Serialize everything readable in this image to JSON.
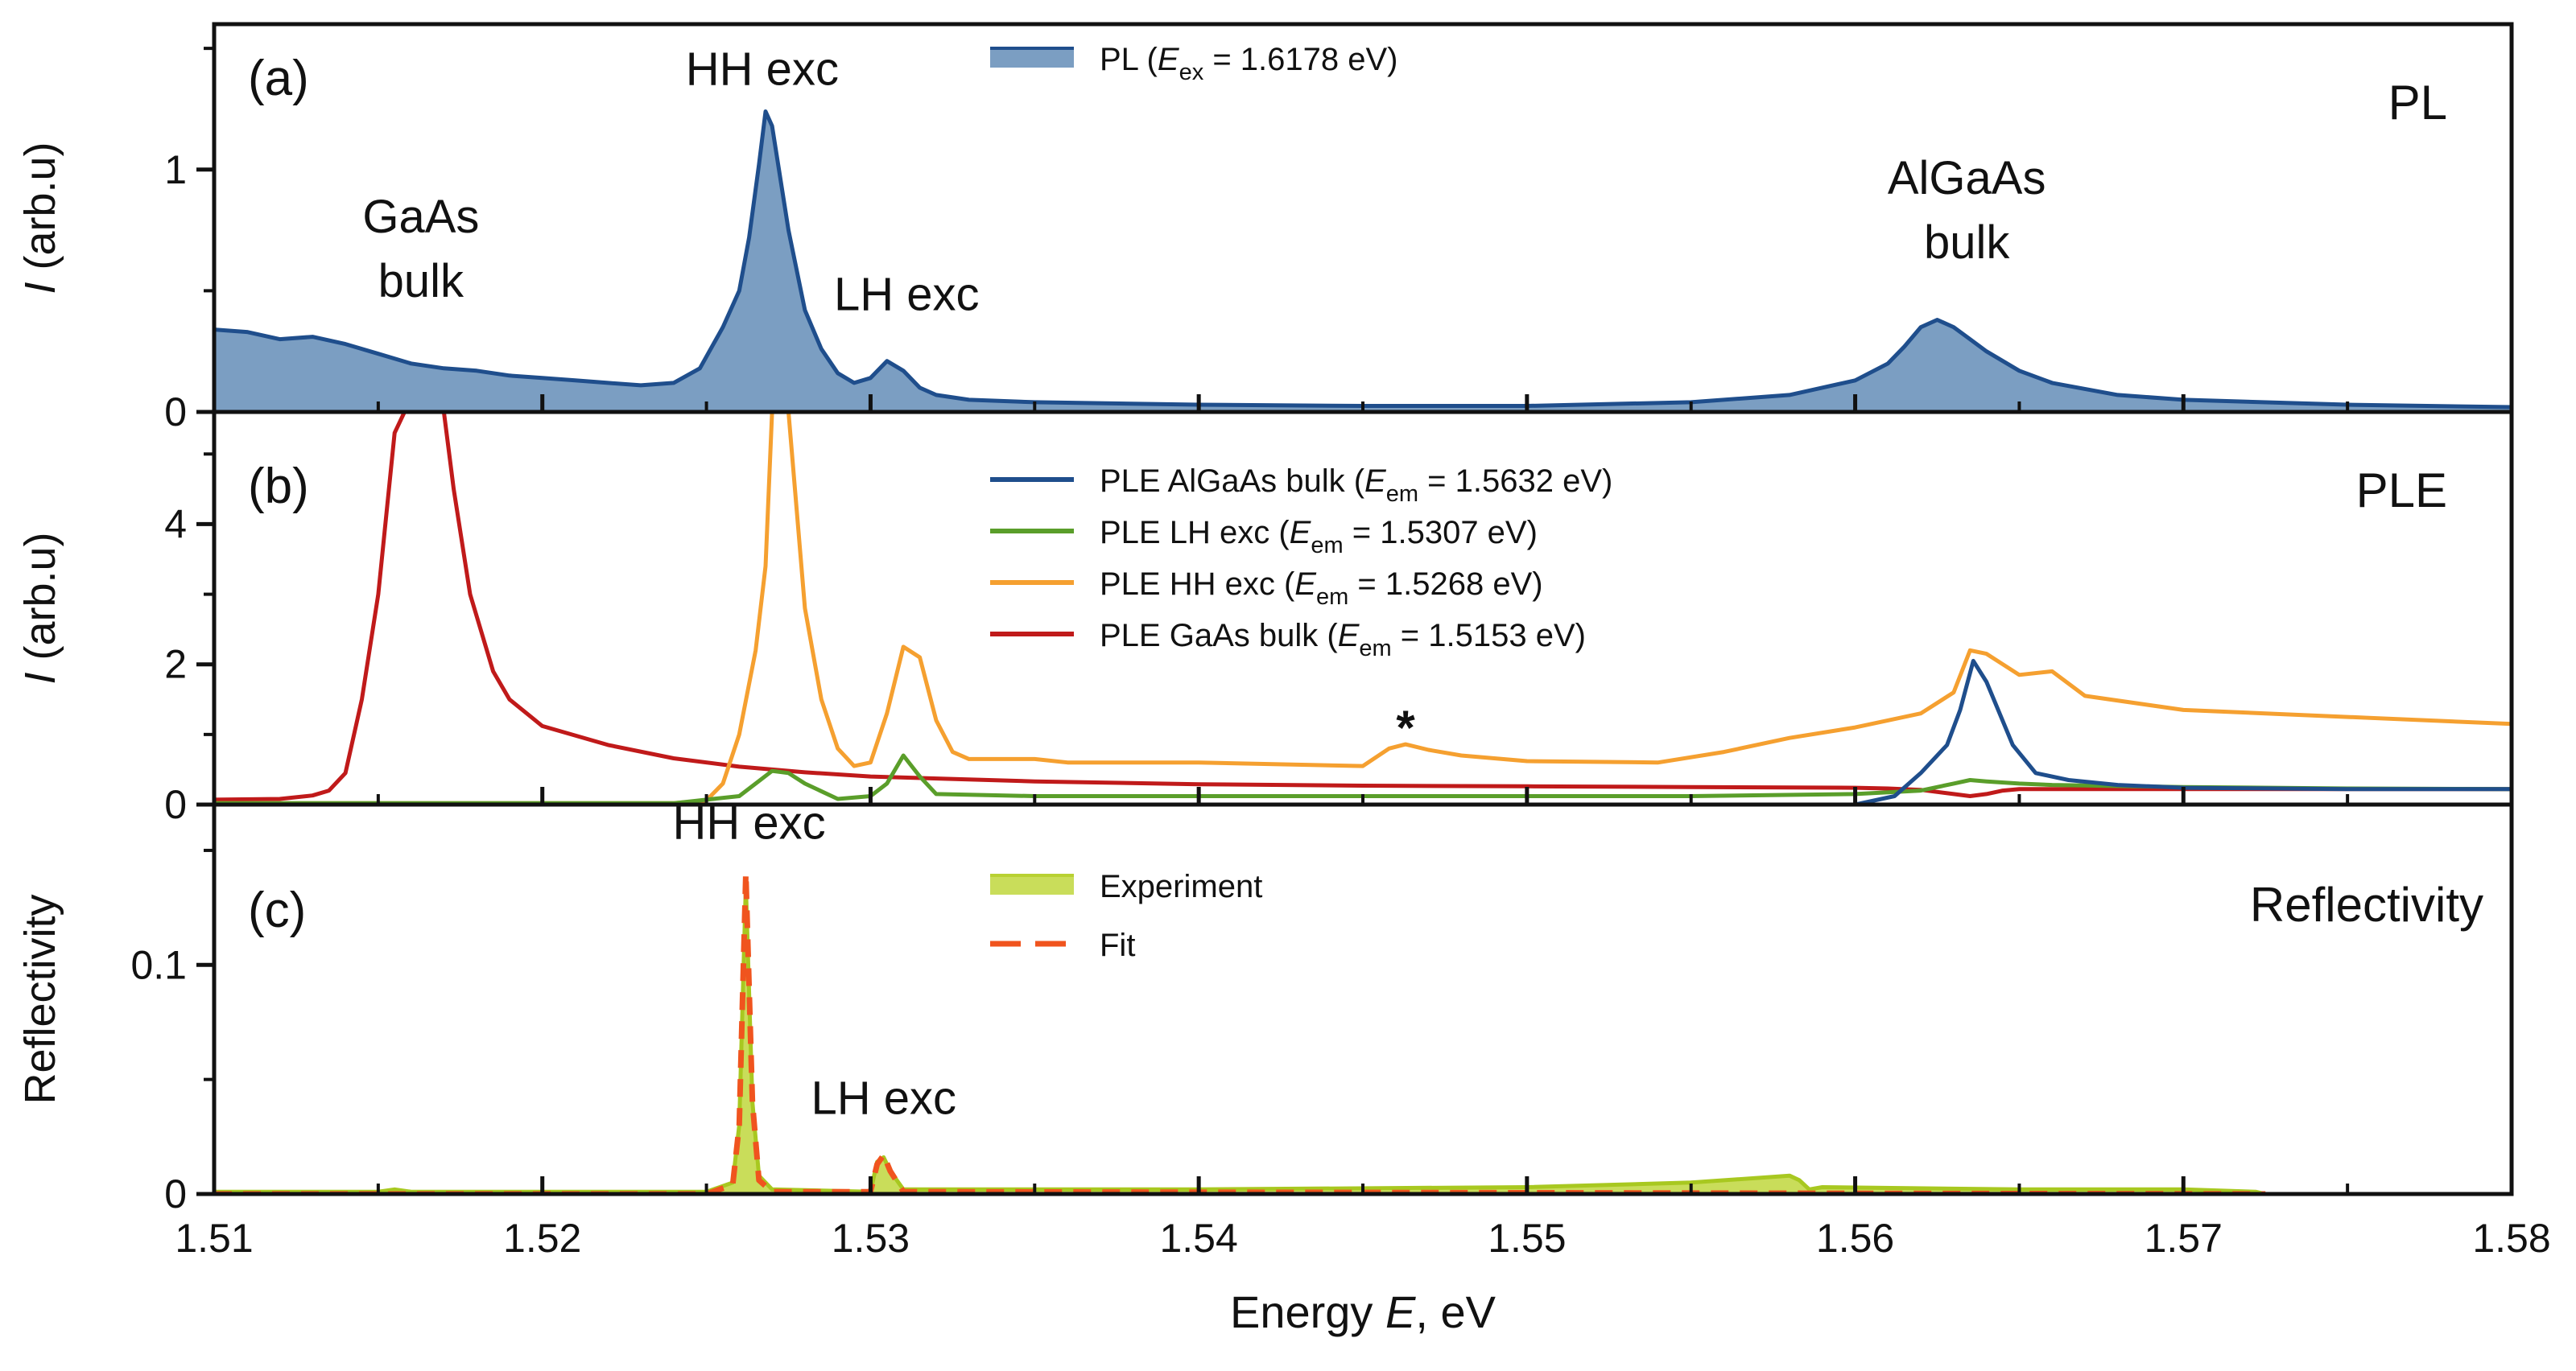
{
  "chart_data": {
    "type": "line",
    "x_axis": {
      "label_prefix": "Energy ",
      "label_var": "E",
      "label_suffix": ", eV",
      "xlim": [
        1.51,
        1.58
      ],
      "ticks": [
        "1.51",
        "1.52",
        "1.53",
        "1.54",
        "1.55",
        "1.56",
        "1.57",
        "1.58"
      ]
    },
    "panels": [
      {
        "id": "a",
        "tag": "(a)",
        "title": "PL",
        "ylabel_var": "I",
        "ylabel_rest": " (arb.u)",
        "ylim": [
          0,
          1.6
        ],
        "yticks": [
          {
            "v": 0,
            "label": "0"
          },
          {
            "v": 1,
            "label": "1"
          }
        ],
        "minor_yticks": [
          0.5,
          1.5
        ],
        "annotations": [
          {
            "lines": [
              "GaAs",
              "bulk"
            ],
            "x": 1.5163,
            "y": 0.74
          },
          {
            "lines": [
              "HH exc"
            ],
            "x": 1.5267,
            "y": 1.35
          },
          {
            "lines": [
              "LH exc"
            ],
            "x": 1.5311,
            "y": 0.42
          },
          {
            "lines": [
              "AlGaAs",
              "bulk"
            ],
            "x": 1.5634,
            "y": 0.9
          }
        ],
        "legend": [
          {
            "text": "PL (",
            "var": "E",
            "sub": "ex",
            "rest": " = 1.6178 eV)",
            "style": "fill",
            "color": "#1f4e8c"
          }
        ],
        "series": [
          {
            "name": "PL",
            "style": "filled",
            "color": "#1f4e8c",
            "fill": "#7b9ec2",
            "x": [
              1.51,
              1.511,
              1.512,
              1.513,
              1.514,
              1.515,
              1.516,
              1.517,
              1.518,
              1.519,
              1.52,
              1.521,
              1.522,
              1.523,
              1.524,
              1.5248,
              1.5255,
              1.526,
              1.5263,
              1.5266,
              1.5268,
              1.527,
              1.5275,
              1.528,
              1.5285,
              1.529,
              1.5295,
              1.53,
              1.5305,
              1.531,
              1.5315,
              1.532,
              1.533,
              1.535,
              1.54,
              1.545,
              1.55,
              1.555,
              1.558,
              1.56,
              1.561,
              1.5615,
              1.562,
              1.5625,
              1.563,
              1.5635,
              1.564,
              1.565,
              1.566,
              1.568,
              1.57,
              1.575,
              1.58
            ],
            "y": [
              0.34,
              0.33,
              0.3,
              0.31,
              0.28,
              0.24,
              0.2,
              0.18,
              0.17,
              0.15,
              0.14,
              0.13,
              0.12,
              0.11,
              0.12,
              0.18,
              0.35,
              0.5,
              0.72,
              1.02,
              1.24,
              1.18,
              0.75,
              0.42,
              0.26,
              0.16,
              0.12,
              0.14,
              0.21,
              0.17,
              0.1,
              0.07,
              0.05,
              0.04,
              0.03,
              0.025,
              0.025,
              0.04,
              0.07,
              0.13,
              0.2,
              0.27,
              0.35,
              0.38,
              0.35,
              0.3,
              0.25,
              0.17,
              0.12,
              0.07,
              0.05,
              0.03,
              0.02
            ]
          }
        ]
      },
      {
        "id": "b",
        "tag": "(b)",
        "title": "PLE",
        "ylabel_var": "I",
        "ylabel_rest": " (arb.u)",
        "ylim": [
          0,
          5.6
        ],
        "yticks": [
          {
            "v": 0,
            "label": "0"
          },
          {
            "v": 2,
            "label": "2"
          },
          {
            "v": 4,
            "label": "4"
          }
        ],
        "minor_yticks": [
          1,
          3,
          5
        ],
        "annotations": [
          {
            "lines": [
              "*"
            ],
            "x": 1.5463,
            "y": 0.86
          }
        ],
        "legend": [
          {
            "text": "PLE AlGaAs bulk (",
            "var": "E",
            "sub": "em",
            "rest": " = 1.5632 eV)",
            "style": "line",
            "color": "#1f4e8c"
          },
          {
            "text": "PLE LH exc (",
            "var": "E",
            "sub": "em",
            "rest": " = 1.5307 eV)",
            "style": "line",
            "color": "#5a9e2a"
          },
          {
            "text": "PLE HH exc (",
            "var": "E",
            "sub": "em",
            "rest": " = 1.5268 eV)",
            "style": "line",
            "color": "#f5a030"
          },
          {
            "text": "PLE GaAs bulk (",
            "var": "E",
            "sub": "em",
            "rest": " = 1.5153 eV)",
            "style": "line",
            "color": "#c01a1a"
          }
        ],
        "series": [
          {
            "name": "PLE GaAs bulk",
            "style": "line",
            "color": "#c01a1a",
            "x": [
              1.51,
              1.512,
              1.513,
              1.5135,
              1.514,
              1.5145,
              1.515,
              1.5155,
              1.5158,
              1.516,
              1.5165,
              1.517,
              1.5173,
              1.5178,
              1.5185,
              1.519,
              1.52,
              1.522,
              1.524,
              1.526,
              1.528,
              1.53,
              1.535,
              1.54,
              1.545,
              1.55,
              1.555,
              1.56,
              1.561,
              1.562,
              1.563,
              1.5635,
              1.564,
              1.5645,
              1.565,
              1.57,
              1.575,
              1.58
            ],
            "y": [
              0.07,
              0.08,
              0.13,
              0.2,
              0.45,
              1.5,
              3.0,
              5.3,
              5.6,
              5.6,
              5.6,
              5.6,
              4.5,
              3.0,
              1.9,
              1.5,
              1.12,
              0.85,
              0.66,
              0.54,
              0.46,
              0.4,
              0.33,
              0.29,
              0.27,
              0.26,
              0.25,
              0.24,
              0.23,
              0.21,
              0.15,
              0.12,
              0.15,
              0.2,
              0.22,
              0.22,
              0.22,
              0.22
            ]
          },
          {
            "name": "PLE HH exc",
            "style": "line",
            "color": "#f5a030",
            "x": [
              1.51,
              1.524,
              1.525,
              1.5255,
              1.526,
              1.5265,
              1.5268,
              1.527,
              1.5275,
              1.528,
              1.5285,
              1.529,
              1.5295,
              1.53,
              1.5305,
              1.531,
              1.5315,
              1.532,
              1.5325,
              1.533,
              1.535,
              1.536,
              1.54,
              1.545,
              1.5458,
              1.5463,
              1.547,
              1.548,
              1.55,
              1.554,
              1.556,
              1.558,
              1.56,
              1.562,
              1.563,
              1.5635,
              1.564,
              1.5645,
              1.565,
              1.566,
              1.567,
              1.57,
              1.575,
              1.58
            ],
            "y": [
              0.02,
              0.02,
              0.06,
              0.3,
              1.0,
              2.2,
              3.4,
              5.6,
              5.6,
              2.8,
              1.5,
              0.8,
              0.55,
              0.6,
              1.3,
              2.25,
              2.1,
              1.2,
              0.75,
              0.65,
              0.65,
              0.6,
              0.6,
              0.55,
              0.8,
              0.86,
              0.78,
              0.7,
              0.62,
              0.6,
              0.75,
              0.95,
              1.1,
              1.3,
              1.6,
              2.2,
              2.15,
              2.0,
              1.85,
              1.9,
              1.55,
              1.35,
              1.25,
              1.15
            ]
          },
          {
            "name": "PLE LH exc",
            "style": "line",
            "color": "#5a9e2a",
            "x": [
              1.51,
              1.524,
              1.526,
              1.5265,
              1.527,
              1.5275,
              1.528,
              1.529,
              1.53,
              1.5305,
              1.531,
              1.5315,
              1.532,
              1.535,
              1.54,
              1.545,
              1.55,
              1.555,
              1.56,
              1.562,
              1.563,
              1.5635,
              1.564,
              1.565,
              1.566,
              1.57,
              1.575,
              1.58
            ],
            "y": [
              0.02,
              0.02,
              0.12,
              0.3,
              0.48,
              0.45,
              0.3,
              0.08,
              0.12,
              0.3,
              0.7,
              0.4,
              0.15,
              0.12,
              0.12,
              0.12,
              0.12,
              0.12,
              0.15,
              0.2,
              0.3,
              0.35,
              0.33,
              0.3,
              0.28,
              0.25,
              0.23,
              0.22
            ]
          },
          {
            "name": "PLE AlGaAs bulk",
            "style": "line",
            "color": "#1f4e8c",
            "x": [
              1.51,
              1.55,
              1.56,
              1.5612,
              1.562,
              1.5628,
              1.5632,
              1.5636,
              1.564,
              1.5648,
              1.5655,
              1.5665,
              1.568,
              1.57,
              1.575,
              1.58
            ],
            "y": [
              0.0,
              0.0,
              0.0,
              0.12,
              0.45,
              0.85,
              1.35,
              2.05,
              1.75,
              0.85,
              0.45,
              0.35,
              0.28,
              0.24,
              0.22,
              0.22
            ]
          }
        ]
      },
      {
        "id": "c",
        "tag": "(c)",
        "title": "Reflectivity",
        "ylabel_var": "",
        "ylabel_rest": "Reflectivity",
        "ylim": [
          0,
          0.17
        ],
        "yticks": [
          {
            "v": 0,
            "label": "0"
          },
          {
            "v": 0.1,
            "label": "0.1"
          }
        ],
        "minor_yticks": [
          0.05,
          0.15
        ],
        "annotations": [
          {
            "lines": [
              "HH exc"
            ],
            "x": 1.5263,
            "y": 0.155
          },
          {
            "lines": [
              "LH exc"
            ],
            "x": 1.5304,
            "y": 0.035
          }
        ],
        "legend": [
          {
            "text": "Experiment",
            "style": "fill",
            "color": "#b8d132"
          },
          {
            "text": "Fit",
            "style": "dash",
            "color": "#f0541e"
          }
        ],
        "series": [
          {
            "name": "Experiment",
            "style": "filled",
            "color": "#a8c820",
            "fill": "#c9dd5a",
            "x": [
              1.51,
              1.515,
              1.5155,
              1.516,
              1.525,
              1.5258,
              1.526,
              1.5262,
              1.5264,
              1.5266,
              1.527,
              1.53,
              1.5302,
              1.5304,
              1.5306,
              1.531,
              1.54,
              1.55,
              1.555,
              1.557,
              1.558,
              1.5583,
              1.5586,
              1.559,
              1.565,
              1.57,
              1.5722,
              1.5725
            ],
            "y": [
              0.001,
              0.001,
              0.002,
              0.001,
              0.001,
              0.005,
              0.03,
              0.135,
              0.04,
              0.008,
              0.002,
              0.001,
              0.014,
              0.016,
              0.01,
              0.002,
              0.002,
              0.003,
              0.005,
              0.007,
              0.008,
              0.006,
              0.002,
              0.003,
              0.002,
              0.002,
              0.001,
              0.0
            ]
          },
          {
            "name": "Fit",
            "style": "dash",
            "color": "#f0541e",
            "x": [
              1.51,
              1.525,
              1.5258,
              1.526,
              1.5262,
              1.5264,
              1.5266,
              1.527,
              1.53,
              1.5302,
              1.5304,
              1.5306,
              1.531,
              1.5725
            ],
            "y": [
              0.0,
              0.0,
              0.004,
              0.03,
              0.14,
              0.04,
              0.006,
              0.001,
              0.001,
              0.013,
              0.017,
              0.01,
              0.001,
              0.0
            ]
          }
        ]
      }
    ]
  }
}
